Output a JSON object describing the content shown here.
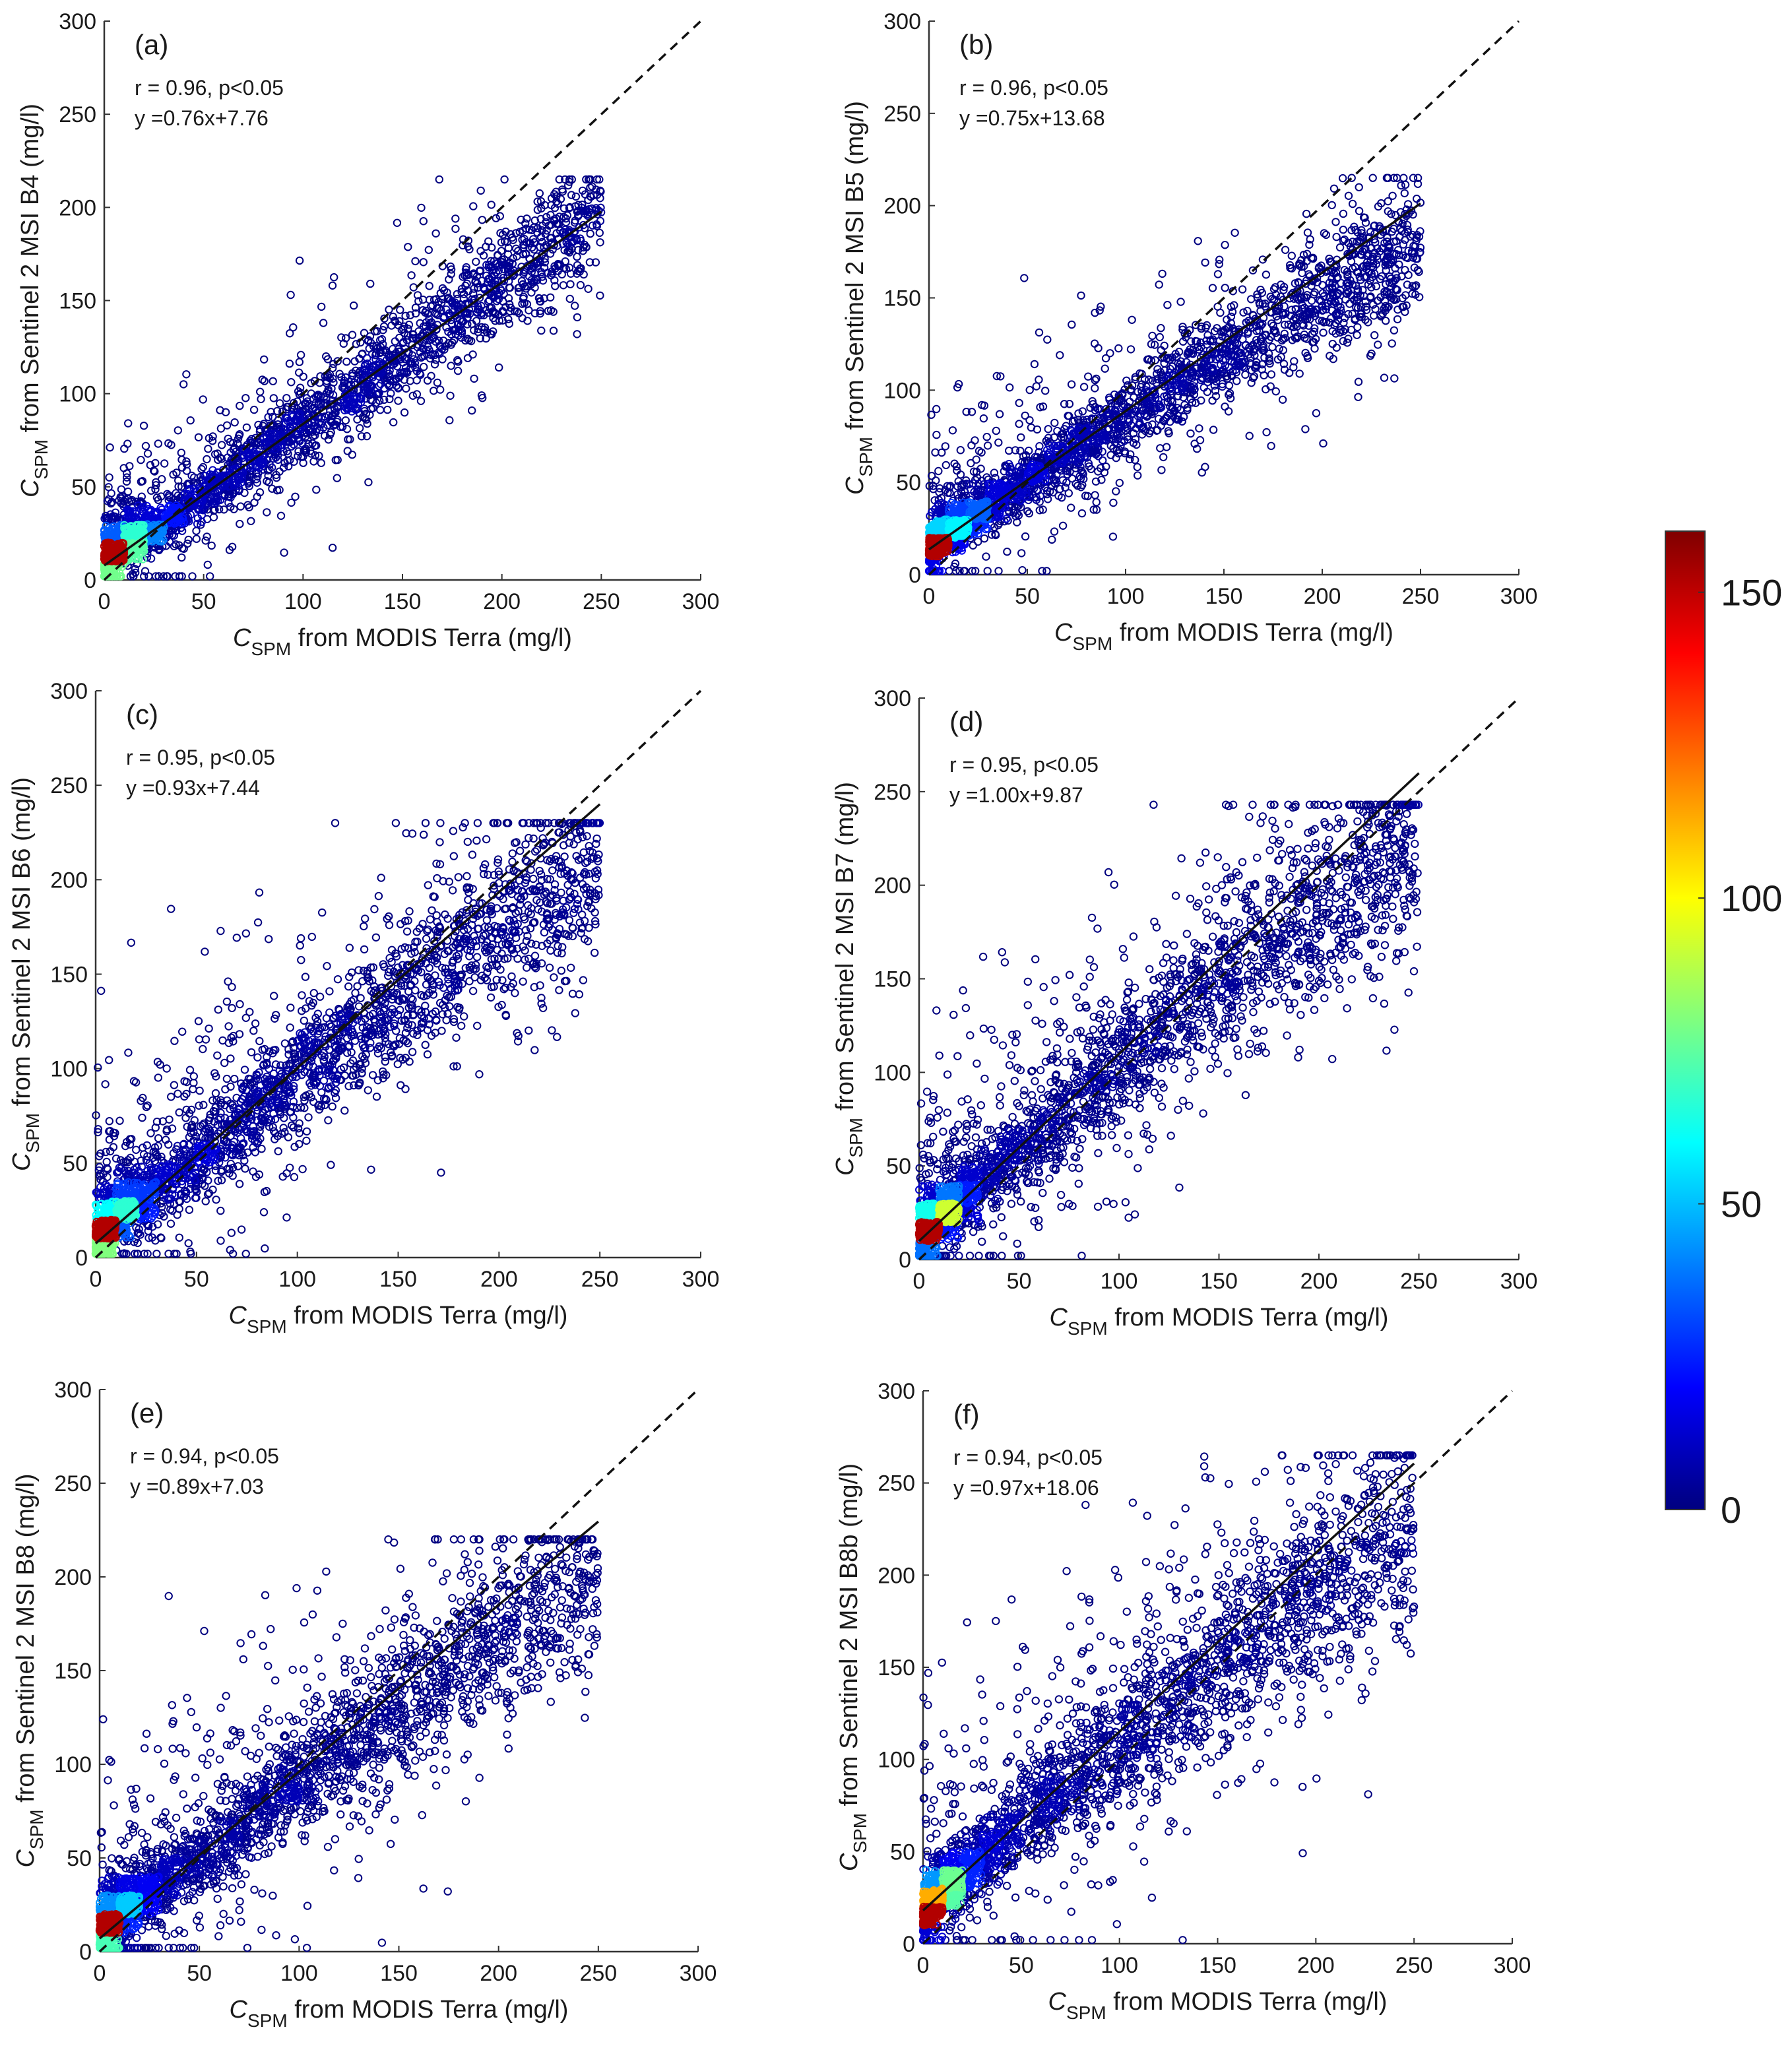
{
  "chart_data": {
    "type": "scatter",
    "shared": {
      "x_axis": {
        "range": [
          0,
          300
        ],
        "ticks": [
          0,
          50,
          100,
          150,
          200,
          250,
          300
        ]
      },
      "y_axis": {
        "range": [
          0,
          300
        ],
        "ticks": [
          0,
          50,
          100,
          150,
          200,
          250,
          300
        ]
      },
      "xlabel": {
        "symbol": "C",
        "subscript": "SPM",
        "rest": " from MODIS Terra (mg/l)"
      },
      "reference_line": {
        "style": "dashed",
        "equation": "y = x"
      },
      "fit_line": {
        "style": "solid"
      },
      "marker": "open circle, colored by point density"
    },
    "colorbar": {
      "range": [
        0,
        160
      ],
      "ticks": [
        0,
        50,
        100,
        150
      ],
      "colormap": "jet",
      "colors": [
        "#00007f",
        "#0000ff",
        "#007fff",
        "#00ffff",
        "#7fff7f",
        "#ffff00",
        "#ff7f00",
        "#ff0000",
        "#7f0000"
      ]
    },
    "panels": [
      {
        "id": "a",
        "label": "(a)",
        "ylabel": {
          "symbol": "C",
          "subscript": "SPM",
          "rest": " from Sentinel 2 MSI B4 (mg/l)"
        },
        "r_text": "r =  0.96, p<0.05",
        "fit_text": "y =0.76x+7.76",
        "slope": 0.76,
        "intercept": 7.76,
        "fit_x_range": [
          0,
          250
        ],
        "cloud": {
          "xmax": 250,
          "spread": 13,
          "curve": 0,
          "ymax": 200,
          "upper": 0.1,
          "lower": 0.08
        }
      },
      {
        "id": "b",
        "label": "(b)",
        "ylabel": {
          "symbol": "C",
          "subscript": "SPM",
          "rest": " from Sentinel 2 MSI B5 (mg/l)"
        },
        "r_text": "r =  0.96, p<0.05",
        "fit_text": "y =0.75x+13.68",
        "slope": 0.75,
        "intercept": 13.68,
        "fit_x_range": [
          0,
          250
        ],
        "cloud": {
          "xmax": 250,
          "spread": 14,
          "curve": 0.0006,
          "ymax": 200,
          "upper": 0.12,
          "lower": 0.08
        }
      },
      {
        "id": "c",
        "label": "(c)",
        "ylabel": {
          "symbol": "C",
          "subscript": "SPM",
          "rest": " from Sentinel 2 MSI B6 (mg/l)"
        },
        "r_text": "r =  0.95, p<0.05",
        "fit_text": "y =0.93x+7.44",
        "slope": 0.93,
        "intercept": 7.44,
        "fit_x_range": [
          0,
          250
        ],
        "cloud": {
          "xmax": 250,
          "spread": 20,
          "curve": 0.0009,
          "ymax": 215,
          "upper": 0.15,
          "lower": 0.07
        }
      },
      {
        "id": "d",
        "label": "(d)",
        "ylabel": {
          "symbol": "C",
          "subscript": "SPM",
          "rest": " from Sentinel 2 MSI B7 (mg/l)"
        },
        "r_text": "r =  0.95, p<0.05",
        "fit_text": "y =1.00x+9.87",
        "slope": 1.0,
        "intercept": 9.87,
        "fit_x_range": [
          0,
          250
        ],
        "cloud": {
          "xmax": 250,
          "spread": 22,
          "curve": 0.0011,
          "ymax": 228,
          "upper": 0.15,
          "lower": 0.07
        }
      },
      {
        "id": "e",
        "label": "(e)",
        "ylabel": {
          "symbol": "C",
          "subscript": "SPM",
          "rest": " from Sentinel 2 MSI B8 (mg/l)"
        },
        "r_text": "r =  0.94, p<0.05",
        "fit_text": "y =0.89x+7.03",
        "slope": 0.89,
        "intercept": 7.03,
        "fit_x_range": [
          0,
          250
        ],
        "cloud": {
          "xmax": 250,
          "spread": 20,
          "curve": 0.0009,
          "ymax": 205,
          "upper": 0.15,
          "lower": 0.07
        }
      },
      {
        "id": "f",
        "label": "(f)",
        "ylabel": {
          "symbol": "C",
          "subscript": "SPM",
          "rest": " from Sentinel 2 MSI B8b (mg/l)"
        },
        "r_text": "r =  0.94, p<0.05",
        "fit_text": "y =0.97x+18.06",
        "slope": 0.97,
        "intercept": 18.06,
        "fit_x_range": [
          0,
          250
        ],
        "cloud": {
          "xmax": 250,
          "spread": 24,
          "curve": 0.0011,
          "ymax": 250,
          "upper": 0.15,
          "lower": 0.07
        }
      }
    ]
  }
}
